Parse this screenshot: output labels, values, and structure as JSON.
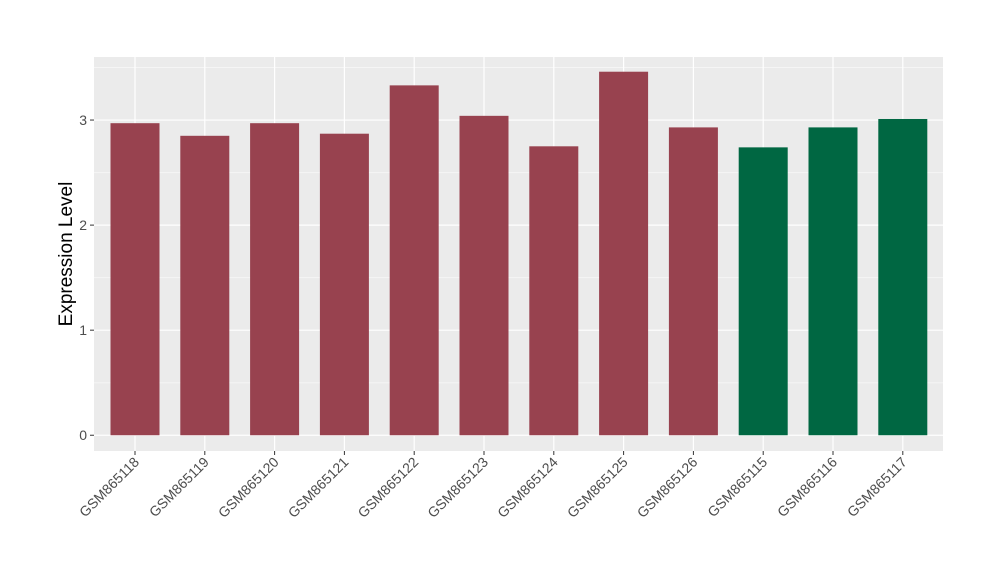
{
  "chart_data": {
    "type": "bar",
    "title": "",
    "xlabel": "",
    "ylabel": "Expression Level",
    "ylim": [
      -0.15,
      3.6
    ],
    "yticks": [
      0,
      1,
      2,
      3
    ],
    "yticks_labels": [
      "0",
      "1",
      "2",
      "3"
    ],
    "grid": true,
    "legend": "none",
    "categories": [
      "GSM865118",
      "GSM865119",
      "GSM865120",
      "GSM865121",
      "GSM865122",
      "GSM865123",
      "GSM865124",
      "GSM865125",
      "GSM865126",
      "GSM865115",
      "GSM865116",
      "GSM865117"
    ],
    "values": [
      2.97,
      2.85,
      2.97,
      2.87,
      3.33,
      3.04,
      2.75,
      3.46,
      2.93,
      2.74,
      2.93,
      3.01
    ],
    "bar_colors": [
      "#98424f",
      "#98424f",
      "#98424f",
      "#98424f",
      "#98424f",
      "#98424f",
      "#98424f",
      "#98424f",
      "#98424f",
      "#006742",
      "#006742",
      "#006742"
    ]
  },
  "colors": {
    "panel_background": "#ebebeb",
    "grid_major": "#ffffff",
    "grid_minor": "#f5f5f5",
    "tick_text": "#4d4d4d"
  }
}
